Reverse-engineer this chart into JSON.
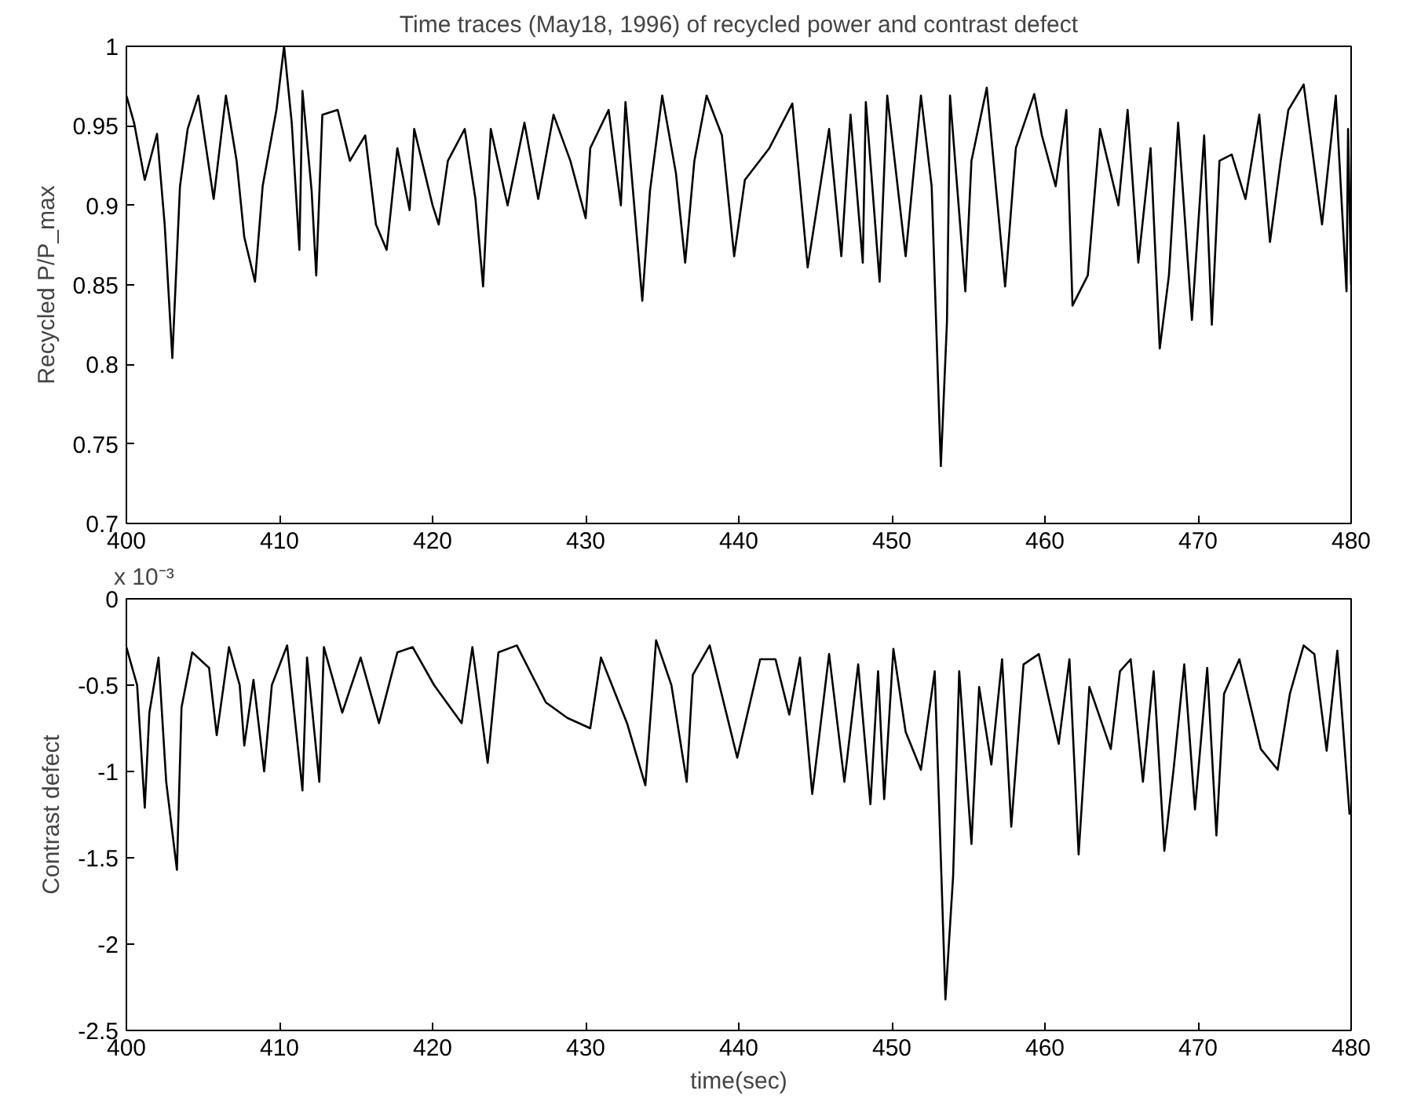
{
  "chart_data": [
    {
      "type": "line",
      "title": "Time traces (May18, 1996) of recycled power and contrast defect",
      "ylabel": "Recycled P/P_max",
      "xlim": [
        400,
        480
      ],
      "xticks": [
        400,
        410,
        420,
        430,
        440,
        450,
        460,
        470,
        480
      ],
      "ylim": [
        0.7,
        1
      ],
      "yticks": [
        0.7,
        0.75,
        0.8,
        0.85,
        0.9,
        0.95,
        1
      ],
      "grid": false,
      "marker": "none",
      "line_style": "solid",
      "x": [
        400.0,
        400.5,
        401.2,
        402.0,
        402.5,
        403.0,
        403.5,
        404.0,
        404.7,
        405.7,
        406.5,
        407.2,
        407.7,
        408.4,
        408.9,
        409.8,
        410.3,
        410.8,
        411.3,
        411.5,
        412.1,
        412.4,
        412.8,
        413.8,
        414.6,
        415.6,
        416.3,
        417.0,
        417.7,
        418.5,
        418.8,
        420.0,
        420.4,
        421.0,
        422.1,
        422.8,
        423.3,
        423.8,
        424.9,
        426.0,
        426.9,
        427.9,
        429.0,
        430.0,
        430.3,
        431.5,
        432.3,
        432.6,
        433.7,
        434.2,
        435.0,
        435.9,
        436.5,
        437.1,
        437.9,
        438.9,
        439.7,
        440.4,
        442.0,
        443.5,
        444.5,
        445.9,
        446.7,
        447.3,
        448.1,
        448.3,
        449.2,
        449.7,
        450.9,
        451.9,
        452.6,
        453.2,
        453.6,
        453.8,
        454.8,
        455.2,
        456.2,
        457.4,
        458.1,
        459.3,
        459.8,
        460.7,
        461.4,
        461.8,
        462.8,
        463.6,
        464.8,
        465.4,
        466.1,
        466.9,
        467.5,
        468.1,
        468.7,
        469.6,
        470.4,
        470.9,
        471.4,
        472.2,
        473.1,
        474.0,
        474.7,
        475.4,
        475.9,
        476.9,
        478.1,
        479.0,
        479.7,
        479.8,
        480.0
      ],
      "series": [
        {
          "color": "#000000",
          "values": [
            0.969,
            0.952,
            0.916,
            0.945,
            0.888,
            0.804,
            0.912,
            0.948,
            0.969,
            0.904,
            0.969,
            0.928,
            0.88,
            0.852,
            0.912,
            0.96,
            1.0,
            0.952,
            0.872,
            0.972,
            0.909,
            0.856,
            0.957,
            0.96,
            0.928,
            0.944,
            0.888,
            0.872,
            0.936,
            0.897,
            0.948,
            0.9,
            0.888,
            0.928,
            0.948,
            0.904,
            0.849,
            0.948,
            0.9,
            0.952,
            0.904,
            0.957,
            0.928,
            0.892,
            0.936,
            0.96,
            0.9,
            0.965,
            0.84,
            0.909,
            0.969,
            0.92,
            0.864,
            0.928,
            0.969,
            0.944,
            0.868,
            0.916,
            0.936,
            0.964,
            0.861,
            0.948,
            0.868,
            0.957,
            0.864,
            0.965,
            0.852,
            0.969,
            0.868,
            0.969,
            0.912,
            0.736,
            0.827,
            0.969,
            0.846,
            0.928,
            0.974,
            0.849,
            0.936,
            0.97,
            0.944,
            0.912,
            0.96,
            0.837,
            0.856,
            0.948,
            0.9,
            0.96,
            0.864,
            0.936,
            0.81,
            0.856,
            0.952,
            0.828,
            0.944,
            0.825,
            0.928,
            0.932,
            0.904,
            0.957,
            0.877,
            0.928,
            0.96,
            0.976,
            0.888,
            0.969,
            0.846,
            0.948,
            0.85
          ]
        }
      ]
    },
    {
      "type": "line",
      "xlabel": "time(sec)",
      "ylabel": "Contrast defect",
      "annotations": [
        "x 10⁻³"
      ],
      "xlim": [
        400,
        480
      ],
      "xticks": [
        400,
        410,
        420,
        430,
        440,
        450,
        460,
        470,
        480
      ],
      "ylim": [
        -2.5,
        0
      ],
      "yticks": [
        -2.5,
        -2,
        -1.5,
        -1,
        -0.5,
        0
      ],
      "grid": false,
      "marker": "none",
      "line_style": "solid",
      "x": [
        400.0,
        400.7,
        401.2,
        401.5,
        402.1,
        402.6,
        403.3,
        403.6,
        404.3,
        405.4,
        405.9,
        406.7,
        407.4,
        407.7,
        408.3,
        409.0,
        409.5,
        410.5,
        411.5,
        411.8,
        412.6,
        412.9,
        414.1,
        415.3,
        416.5,
        417.7,
        418.7,
        420.1,
        421.9,
        422.6,
        423.6,
        424.3,
        425.5,
        427.4,
        428.8,
        430.3,
        431.0,
        432.7,
        433.9,
        434.6,
        435.6,
        436.6,
        437.0,
        438.1,
        439.9,
        441.4,
        442.4,
        443.3,
        444.0,
        444.8,
        445.9,
        446.9,
        447.8,
        448.6,
        449.1,
        449.5,
        450.1,
        450.9,
        451.9,
        452.8,
        453.5,
        454.0,
        454.4,
        455.2,
        455.7,
        456.5,
        457.2,
        457.8,
        458.6,
        459.6,
        460.9,
        461.6,
        462.2,
        462.9,
        464.3,
        464.9,
        465.6,
        466.4,
        467.1,
        467.8,
        468.4,
        469.1,
        469.8,
        470.6,
        471.2,
        471.7,
        472.7,
        474.1,
        475.2,
        476.0,
        476.9,
        477.6,
        478.4,
        479.1,
        479.9
      ],
      "series": [
        {
          "color": "#000000",
          "values": [
            -0.28,
            -0.5,
            -1.21,
            -0.66,
            -0.34,
            -1.06,
            -1.57,
            -0.63,
            -0.31,
            -0.4,
            -0.79,
            -0.28,
            -0.5,
            -0.85,
            -0.47,
            -1.0,
            -0.5,
            -0.27,
            -1.11,
            -0.34,
            -1.06,
            -0.28,
            -0.66,
            -0.34,
            -0.72,
            -0.31,
            -0.28,
            -0.5,
            -0.72,
            -0.28,
            -0.95,
            -0.31,
            -0.27,
            -0.6,
            -0.69,
            -0.75,
            -0.34,
            -0.72,
            -1.08,
            -0.24,
            -0.5,
            -1.06,
            -0.44,
            -0.27,
            -0.92,
            -0.35,
            -0.35,
            -0.67,
            -0.34,
            -1.13,
            -0.32,
            -1.06,
            -0.38,
            -1.19,
            -0.42,
            -1.16,
            -0.29,
            -0.77,
            -0.99,
            -0.42,
            -2.32,
            -1.61,
            -0.42,
            -1.42,
            -0.51,
            -0.96,
            -0.35,
            -1.32,
            -0.38,
            -0.32,
            -0.84,
            -0.35,
            -1.48,
            -0.51,
            -0.87,
            -0.42,
            -0.35,
            -1.06,
            -0.42,
            -1.46,
            -0.99,
            -0.38,
            -1.22,
            -0.4,
            -1.37,
            -0.55,
            -0.35,
            -0.87,
            -0.99,
            -0.55,
            -0.27,
            -0.32,
            -0.88,
            -0.3,
            -1.25
          ]
        }
      ]
    }
  ]
}
